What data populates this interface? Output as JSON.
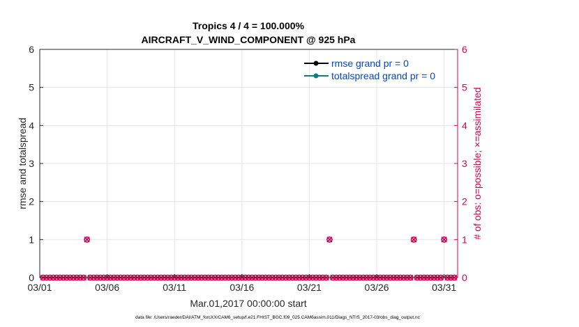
{
  "chart_data": {
    "type": "scatter",
    "title": "Tropics 4 / 4 = 100.000%",
    "subtitle": "AIRCRAFT_V_WIND_COMPONENT @ 925 hPa",
    "xlabel": "Mar.01,2017 00:00:00 start",
    "ylabel": "rmse and totalspread",
    "ylabel_right": "# of obs: o=possible; ×=assimilated",
    "footer": "data file: /Users/raeder/DAI/ATM_forcXX/CAM6_setup/f.e21.FHIST_BGC.f09_025.CAM6assim.011/Diags_NTrS_2017-03/obs_diag_output.nc",
    "xlim": [
      "03/01",
      "04/01"
    ],
    "ylim": [
      0,
      6
    ],
    "ylim_right": [
      0,
      6
    ],
    "x_tick_labels": [
      "03/01",
      "03/06",
      "03/11",
      "03/16",
      "03/21",
      "03/26",
      "03/31"
    ],
    "y_ticks": [
      0,
      1,
      2,
      3,
      4,
      5,
      6
    ],
    "grid": true,
    "legend_position": "top-right",
    "legend": [
      {
        "label": "rmse grand pr = 0",
        "color": "#000000"
      },
      {
        "label": "totalspread grand pr = 0",
        "color": "#008080"
      }
    ],
    "series": [
      {
        "name": "# of obs",
        "axis": "right",
        "color": "#d6004f",
        "points_per_day": 4,
        "day_range": [
          "03/01",
          "04/01"
        ],
        "values_default": 0,
        "nonzero_points": [
          {
            "x": "03/04 12:00",
            "y": 1
          },
          {
            "x": "03/22 12:00",
            "y": 1
          },
          {
            "x": "03/28 18:00",
            "y": 1
          },
          {
            "x": "03/31 00:00",
            "y": 1
          }
        ]
      }
    ],
    "colors": {
      "left_axis": "#262626",
      "right_axis": "#d6004f",
      "legend_text": "#0044dd",
      "grid": "#e6e6e6"
    }
  }
}
